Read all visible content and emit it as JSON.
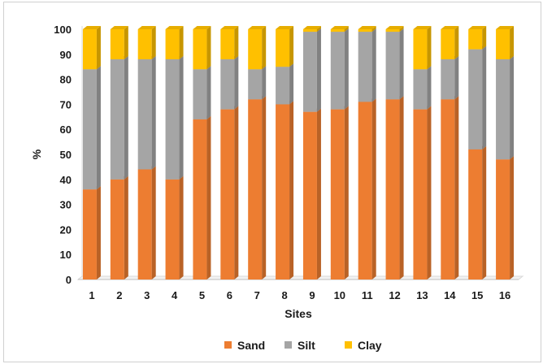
{
  "chart_data": {
    "type": "bar",
    "stacked": true,
    "style": "3d",
    "categories": [
      "1",
      "2",
      "3",
      "4",
      "5",
      "6",
      "7",
      "8",
      "9",
      "10",
      "11",
      "12",
      "13",
      "14",
      "15",
      "16"
    ],
    "series": [
      {
        "name": "Sand",
        "color": "#ED7D31",
        "values": [
          36,
          40,
          44,
          40,
          64,
          68,
          72,
          70,
          67,
          68,
          71,
          72,
          68,
          72,
          52,
          48
        ]
      },
      {
        "name": "Silt",
        "color": "#A5A5A5",
        "values": [
          48,
          48,
          44,
          48,
          20,
          20,
          12,
          15,
          32,
          31,
          28,
          27,
          16,
          16,
          40,
          40
        ]
      },
      {
        "name": "Clay",
        "color": "#FFC000",
        "values": [
          16,
          12,
          12,
          12,
          16,
          12,
          16,
          15,
          1,
          1,
          1,
          1,
          16,
          12,
          8,
          12
        ]
      }
    ],
    "xlabel": "Sites",
    "ylabel": "%",
    "ylim": [
      0,
      100
    ],
    "yticks": [
      0,
      10,
      20,
      30,
      40,
      50,
      60,
      70,
      80,
      90,
      100
    ],
    "grid": false,
    "legend": "bottom"
  }
}
